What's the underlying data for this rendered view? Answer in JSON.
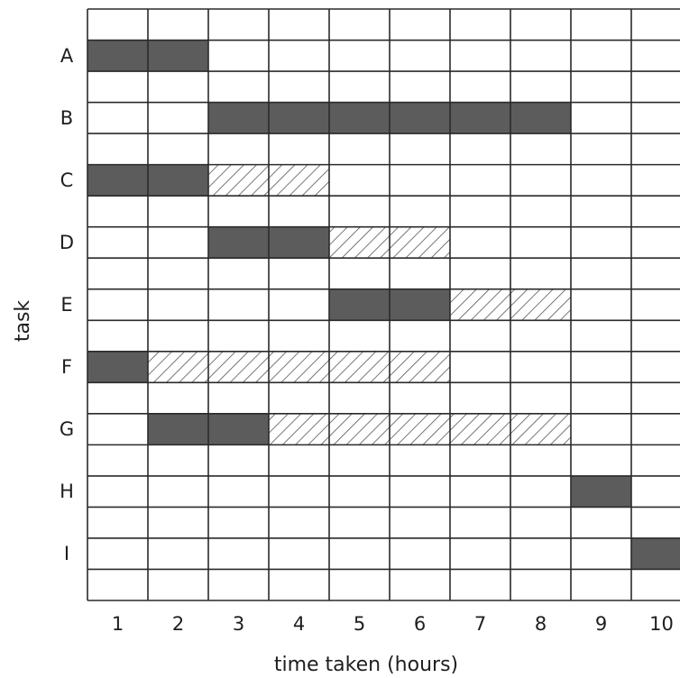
{
  "chart_data": {
    "type": "gantt",
    "xlabel": "time taken (hours)",
    "ylabel": "task",
    "xlim": [
      0,
      10
    ],
    "x_ticks": [
      "1",
      "2",
      "3",
      "4",
      "5",
      "6",
      "7",
      "8",
      "9",
      "10"
    ],
    "grid": true,
    "colors": {
      "activity": "#5c5c5c",
      "float": "#ffffff",
      "grid": "#2a2a2a",
      "hatch": "#555555"
    },
    "legend": "none",
    "tasks": [
      {
        "name": "A",
        "start": 0,
        "duration": 2,
        "float": 0
      },
      {
        "name": "B",
        "start": 2,
        "duration": 6,
        "float": 0
      },
      {
        "name": "C",
        "start": 0,
        "duration": 2,
        "float": 2
      },
      {
        "name": "D",
        "start": 2,
        "duration": 2,
        "float": 2
      },
      {
        "name": "E",
        "start": 4,
        "duration": 2,
        "float": 2
      },
      {
        "name": "F",
        "start": 0,
        "duration": 1,
        "float": 5
      },
      {
        "name": "G",
        "start": 1,
        "duration": 2,
        "float": 5
      },
      {
        "name": "H",
        "start": 8,
        "duration": 1,
        "float": 0
      },
      {
        "name": "I",
        "start": 9,
        "duration": 1,
        "float": 0
      }
    ]
  }
}
